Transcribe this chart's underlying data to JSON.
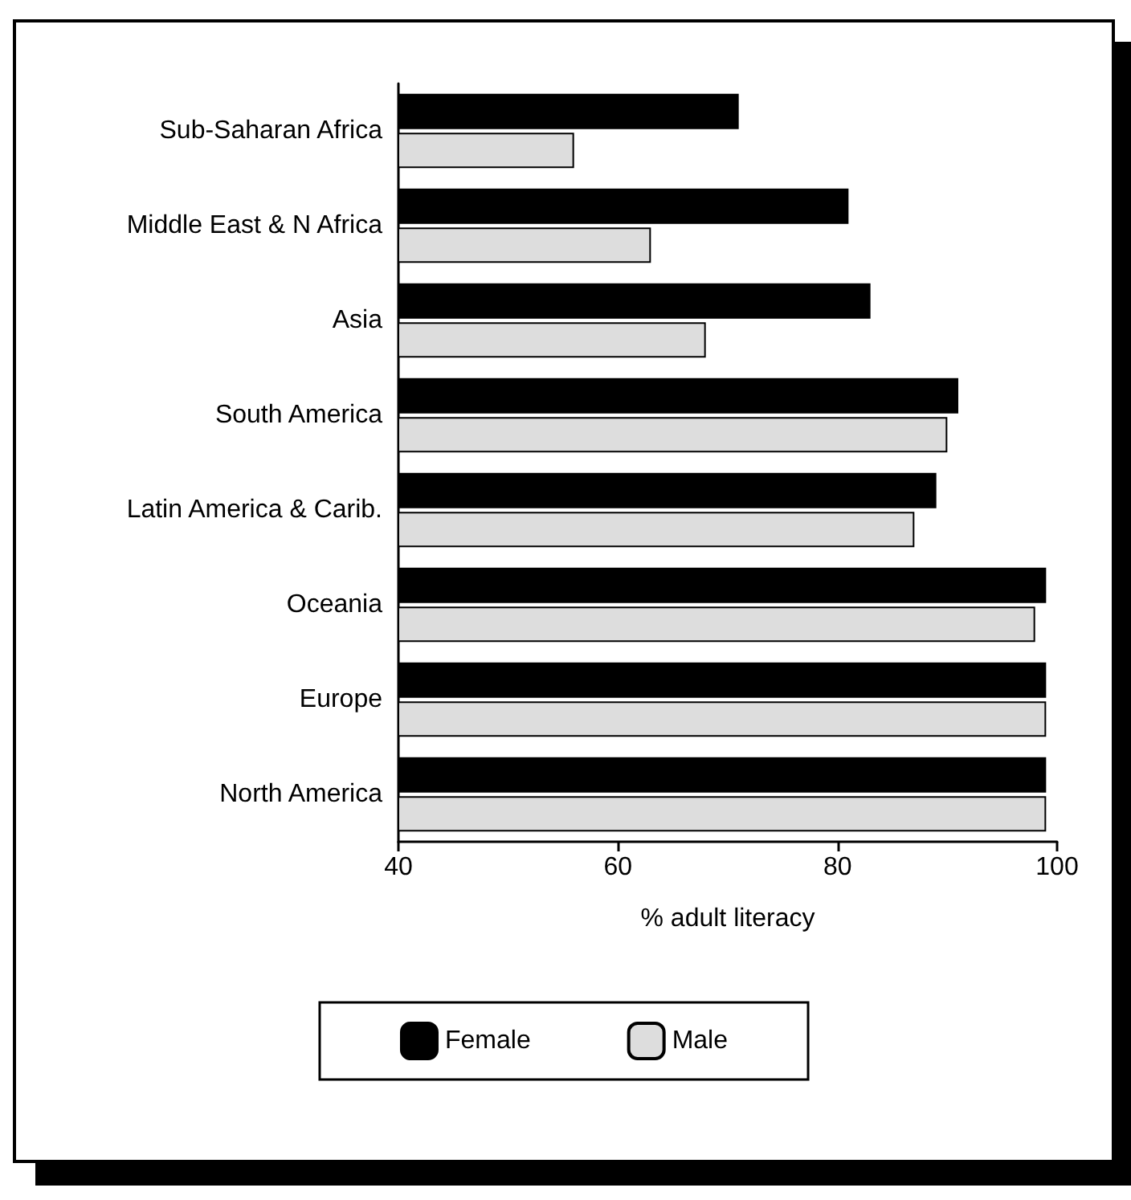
{
  "chart_data": {
    "type": "bar",
    "orientation": "horizontal",
    "xlabel": "% adult literacy",
    "categories": [
      "Sub-Saharan Africa",
      "Middle East & N Africa",
      "Asia",
      "South America",
      "Latin America & Carib.",
      "Oceania",
      "Europe",
      "North America"
    ],
    "series": [
      {
        "name": "Female",
        "color": "#000000",
        "values": [
          71,
          81,
          83,
          91,
          89,
          99,
          99,
          99
        ]
      },
      {
        "name": "Male",
        "color": "#dddddd",
        "values": [
          56,
          63,
          68,
          90,
          87,
          98,
          99,
          99
        ]
      }
    ],
    "xlim": [
      40,
      100
    ],
    "xticks": [
      40,
      60,
      80,
      100
    ],
    "grid": false,
    "legend": "bottom"
  }
}
